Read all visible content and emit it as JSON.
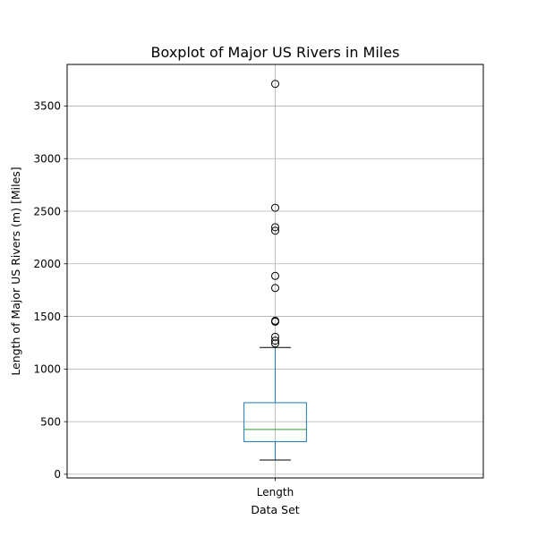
{
  "chart_data": {
    "type": "boxplot",
    "title": "Boxplot of Major US Rivers in Miles",
    "xlabel": "Data Set",
    "ylabel": "Length of Major US Rivers (m) [Miles]",
    "categories": [
      "Length"
    ],
    "ylim": [
      -35,
      3895
    ],
    "yticks": [
      0,
      500,
      1000,
      1500,
      2000,
      2500,
      3000,
      3500
    ],
    "grid": true,
    "boxes": [
      {
        "category": "Length",
        "whisker_low": 135,
        "q1": 310,
        "median": 425,
        "q3": 680,
        "whisker_high": 1205,
        "outliers": [
          1243,
          1270,
          1306,
          1450,
          1459,
          1770,
          1885,
          2315,
          2348,
          2533,
          3710
        ]
      }
    ],
    "colors": {
      "box": "#1f77b4",
      "median": "#2ca02c",
      "whisker": "#1f77b4",
      "cap": "#000000",
      "outlier": "#000000",
      "grid": "#b0b0b0"
    }
  }
}
